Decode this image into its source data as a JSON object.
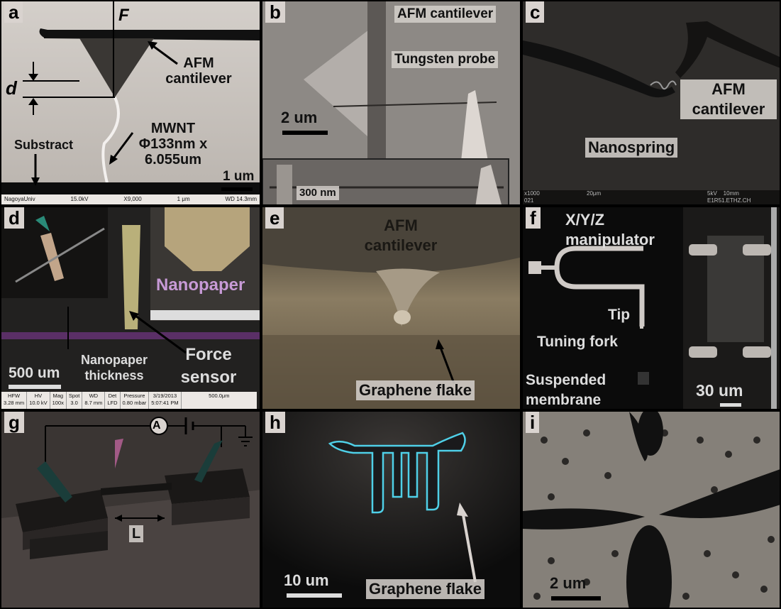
{
  "panels": {
    "a": {
      "letter": "a",
      "labels": {
        "force": "F",
        "d": "d",
        "cantilever": "AFM\ncantilever",
        "mwnt": "MWNT\nΦ133nm x\n6.055um",
        "substract": "Substract",
        "scale": "1 um"
      },
      "meta": {
        "left": "NagoyaUniv",
        "kv": "15.0kV",
        "mag": "X9,000",
        "bar": "1 μm",
        "wd": "WD 14.3mm"
      }
    },
    "b": {
      "letter": "b",
      "labels": {
        "cantilever": "AFM cantilever",
        "probe": "Tungsten probe",
        "scale_main": "2 um",
        "scale_inset": "300 nm"
      }
    },
    "c": {
      "letter": "c",
      "labels": {
        "cantilever": "AFM\ncantilever",
        "nanospring": "Nanospring"
      },
      "meta": {
        "left": "x1000\n021",
        "bar": "20μm",
        "right": "5kV    10mm\nE1R51.ETHZ.CH"
      }
    },
    "d": {
      "letter": "d",
      "labels": {
        "nanopaper": "Nanopaper",
        "thickness": "Nanopaper\nthickness",
        "force_sensor": "Force\nsensor",
        "scale": "500 um"
      },
      "table": {
        "headers": [
          "HFW",
          "HV",
          "Mag",
          "Spot",
          "WD",
          "Det",
          "Pressure",
          "3/19/2013",
          "500.0μm"
        ],
        "values": [
          "3.28 mm",
          "10.0 kV",
          "100x",
          "3.0",
          "8.7 mm",
          "LFD",
          "0.80 mbar",
          "5:07:41 PM",
          ""
        ]
      }
    },
    "e": {
      "letter": "e",
      "labels": {
        "cantilever": "AFM\ncantilever",
        "flake": "Graphene flake"
      }
    },
    "f": {
      "letter": "f",
      "labels": {
        "manipulator": "X/Y/Z\nmanipulator",
        "tip": "Tip",
        "fork": "Tuning fork",
        "membrane": "Suspended\nmembrane",
        "scale": "30 um"
      }
    },
    "g": {
      "letter": "g",
      "labels": {
        "ammeter": "A",
        "length": "L"
      }
    },
    "h": {
      "letter": "h",
      "labels": {
        "scale": "10 um",
        "flake": "Graphene flake"
      }
    },
    "i": {
      "letter": "i",
      "labels": {
        "scale": "2 um"
      }
    }
  },
  "colors": {
    "background": "#000000",
    "label_bg": "#d9d3cf",
    "nanopaper": "#c79ad6",
    "graphene_edge": "#4fd0e8"
  }
}
